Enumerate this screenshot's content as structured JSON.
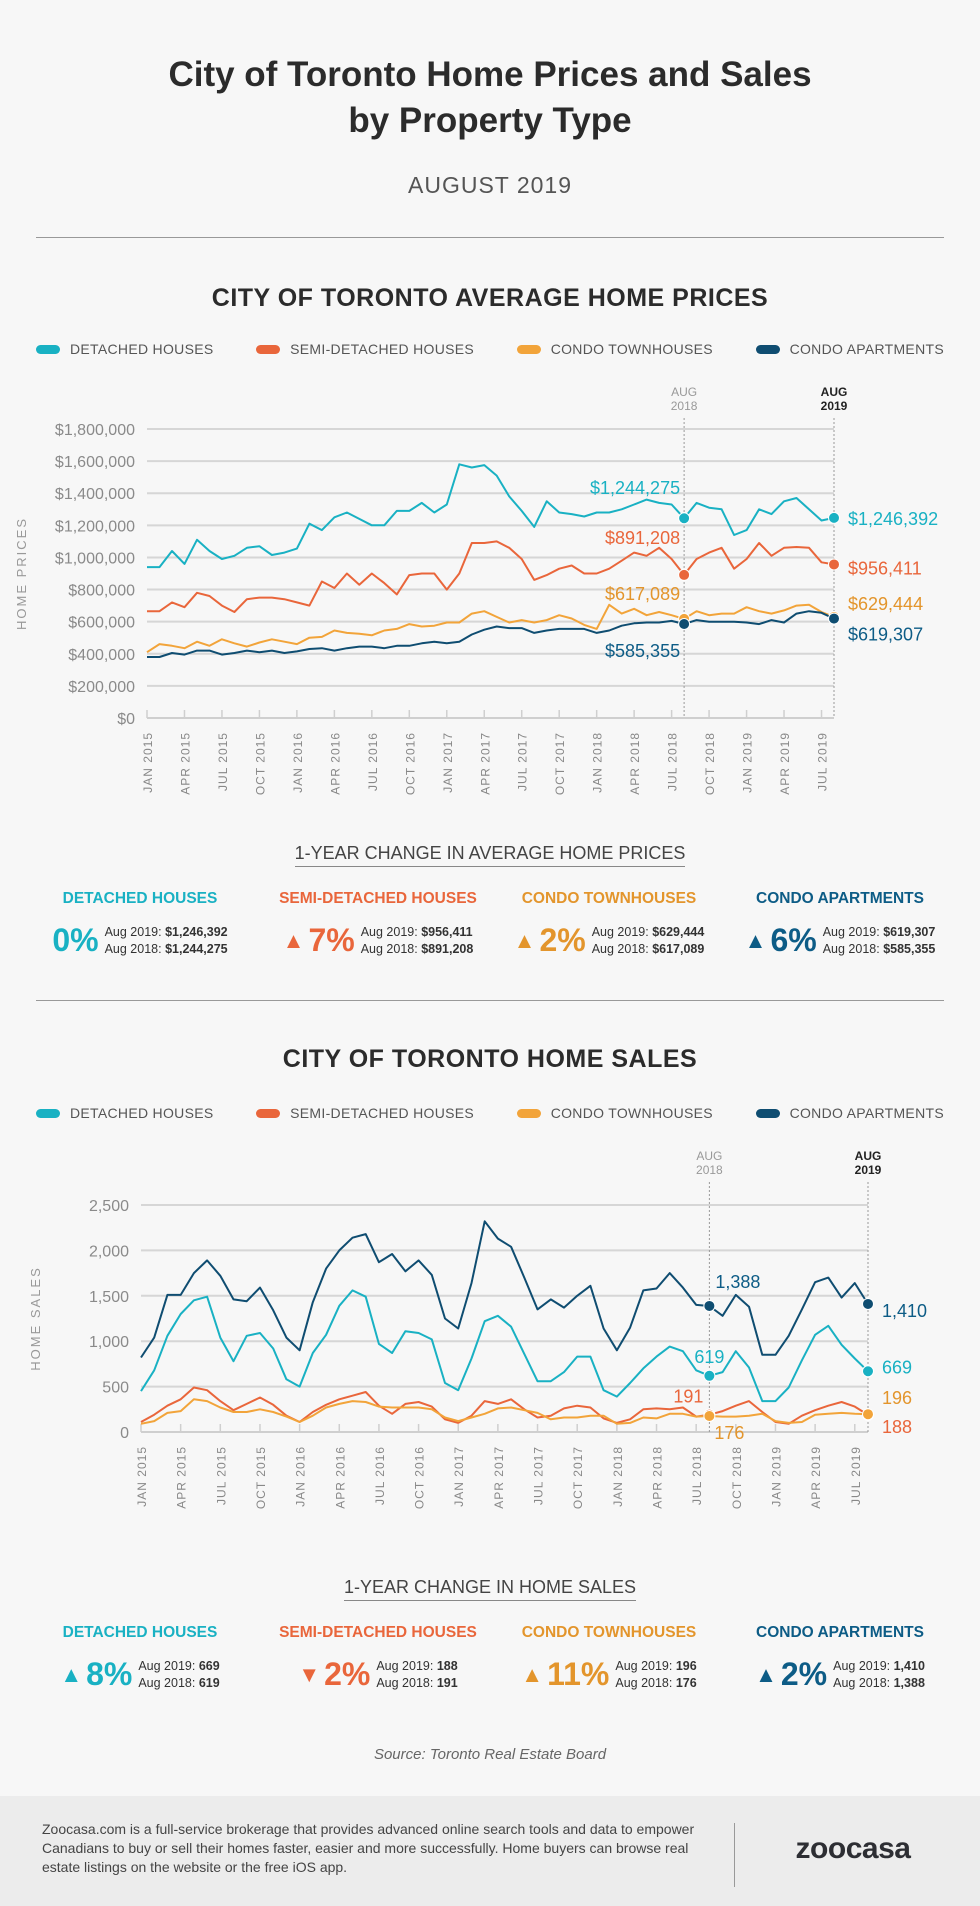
{
  "header": {
    "title_line1": "City of Toronto Home Prices and Sales",
    "title_line2": "by Property Type",
    "subtitle": "AUGUST 2019"
  },
  "colors": {
    "detached": "#19b1c3",
    "semi": "#e9663b",
    "townhouse": "#f2a43a",
    "apartment": "#0f4d71",
    "townhouse_text": "#e3952c",
    "apartment_text": "#0d5c86"
  },
  "legend": [
    "DETACHED HOUSES",
    "SEMI-DETACHED HOUSES",
    "CONDO TOWNHOUSES",
    "CONDO APARTMENTS"
  ],
  "prices": {
    "section_title": "CITY OF TORONTO AVERAGE HOME PRICES",
    "change_title": "1-YEAR CHANGE IN AVERAGE HOME PRICES",
    "changes": [
      {
        "name": "DETACHED HOUSES",
        "direction": "none",
        "pct": "0%",
        "line1_label": "Aug 2019:",
        "line1_value": "$1,246,392",
        "line2_label": "Aug 2018:",
        "line2_value": "$1,244,275"
      },
      {
        "name": "SEMI-DETACHED HOUSES",
        "direction": "up",
        "pct": "7%",
        "line1_label": "Aug 2019:",
        "line1_value": "$956,411",
        "line2_label": "Aug 2018:",
        "line2_value": "$891,208"
      },
      {
        "name": "CONDO TOWNHOUSES",
        "direction": "up",
        "pct": "2%",
        "line1_label": "Aug 2019:",
        "line1_value": "$629,444",
        "line2_label": "Aug 2018:",
        "line2_value": "$617,089"
      },
      {
        "name": "CONDO APARTMENTS",
        "direction": "up",
        "pct": "6%",
        "line1_label": "Aug 2019:",
        "line1_value": "$619,307",
        "line2_label": "Aug 2018:",
        "line2_value": "$585,355"
      }
    ]
  },
  "sales": {
    "section_title": "CITY OF TORONTO HOME SALES",
    "change_title": "1-YEAR CHANGE IN HOME SALES",
    "changes": [
      {
        "name": "DETACHED HOUSES",
        "direction": "up",
        "pct": "8%",
        "line1_label": "Aug 2019:",
        "line1_value": "669",
        "line2_label": "Aug 2018:",
        "line2_value": "619"
      },
      {
        "name": "SEMI-DETACHED HOUSES",
        "direction": "down",
        "pct": "2%",
        "line1_label": "Aug 2019:",
        "line1_value": "188",
        "line2_label": "Aug 2018:",
        "line2_value": "191"
      },
      {
        "name": "CONDO TOWNHOUSES",
        "direction": "up",
        "pct": "11%",
        "line1_label": "Aug 2019:",
        "line1_value": "196",
        "line2_label": "Aug 2018:",
        "line2_value": "176"
      },
      {
        "name": "CONDO APARTMENTS",
        "direction": "up",
        "pct": "2%",
        "line1_label": "Aug 2019:",
        "line1_value": "1,410",
        "line2_label": "Aug 2018:",
        "line2_value": "1,388"
      }
    ]
  },
  "chart_data": [
    {
      "type": "line",
      "title": "CITY OF TORONTO AVERAGE HOME PRICES",
      "ylabel": "HOME PRICES",
      "ylim": [
        0,
        1800000
      ],
      "yticks": [
        0,
        200000,
        400000,
        600000,
        800000,
        1000000,
        1200000,
        1400000,
        1600000,
        1800000
      ],
      "ytick_labels": [
        "$0",
        "$200,000",
        "$400,000",
        "$600,000",
        "$800,000",
        "$1,000,000",
        "$1,200,000",
        "$1,400,000",
        "$1,600,000",
        "$1,800,000"
      ],
      "x_start": "JAN 2015",
      "x_end": "AUG 2019",
      "xtick_labels": [
        "JAN 2015",
        "APR 2015",
        "JUL 2015",
        "OCT 2015",
        "JAN 2016",
        "APR 2016",
        "JUL 2016",
        "OCT 2016",
        "JAN 2017",
        "APR 2017",
        "JUL 2017",
        "OCT 2017",
        "JAN 2018",
        "APR 2018",
        "JUL 2018",
        "OCT 2018",
        "JAN 2019",
        "APR 2019",
        "JUL 2019"
      ],
      "markers": [
        {
          "label_top": "AUG",
          "label_bottom": "2018",
          "index": 43,
          "bold": false
        },
        {
          "label_top": "AUG",
          "label_bottom": "2019",
          "index": 55,
          "bold": true
        }
      ],
      "grid": true,
      "legend": "top",
      "series": [
        {
          "name": "DETACHED HOUSES",
          "key": "detached",
          "values": [
            940000,
            940000,
            1040000,
            960000,
            1110000,
            1040000,
            990000,
            1010000,
            1060000,
            1070000,
            1015000,
            1030000,
            1055000,
            1210000,
            1170000,
            1250000,
            1280000,
            1240000,
            1200000,
            1200000,
            1290000,
            1290000,
            1340000,
            1280000,
            1330000,
            1580000,
            1560000,
            1575000,
            1510000,
            1380000,
            1290000,
            1190000,
            1350000,
            1280000,
            1270000,
            1255000,
            1280000,
            1280000,
            1300000,
            1330000,
            1360000,
            1340000,
            1330000,
            1244275,
            1340000,
            1310000,
            1300000,
            1140000,
            1170000,
            1300000,
            1270000,
            1350000,
            1370000,
            1300000,
            1230000,
            1246392
          ],
          "label_2018": "$1,244,275",
          "label_2019": "$1,246,392"
        },
        {
          "name": "SEMI-DETACHED HOUSES",
          "key": "semi",
          "values": [
            665000,
            665000,
            720000,
            690000,
            780000,
            760000,
            700000,
            660000,
            740000,
            750000,
            750000,
            740000,
            720000,
            700000,
            850000,
            810000,
            900000,
            830000,
            900000,
            840000,
            770000,
            890000,
            900000,
            900000,
            800000,
            900000,
            1090000,
            1090000,
            1100000,
            1060000,
            990000,
            860000,
            890000,
            930000,
            950000,
            900000,
            900000,
            930000,
            980000,
            1030000,
            1010000,
            1060000,
            990000,
            891208,
            990000,
            1030000,
            1060000,
            930000,
            990000,
            1090000,
            1010000,
            1060000,
            1065000,
            1060000,
            970000,
            956411
          ],
          "label_2018": "$891,208",
          "label_2019": "$956,411"
        },
        {
          "name": "CONDO TOWNHOUSES",
          "key": "townhouse",
          "values": [
            410000,
            460000,
            450000,
            435000,
            475000,
            450000,
            490000,
            465000,
            445000,
            470000,
            490000,
            475000,
            460000,
            500000,
            505000,
            545000,
            530000,
            525000,
            515000,
            545000,
            555000,
            585000,
            570000,
            575000,
            595000,
            595000,
            650000,
            665000,
            630000,
            595000,
            610000,
            595000,
            610000,
            640000,
            620000,
            580000,
            555000,
            705000,
            650000,
            680000,
            640000,
            660000,
            640000,
            617089,
            665000,
            640000,
            650000,
            650000,
            690000,
            665000,
            650000,
            670000,
            700000,
            705000,
            660000,
            629444
          ],
          "label_2018": "$617,089",
          "label_2019": "$629,444"
        },
        {
          "name": "CONDO APARTMENTS",
          "key": "apartment",
          "values": [
            380000,
            380000,
            405000,
            395000,
            420000,
            420000,
            395000,
            405000,
            420000,
            410000,
            420000,
            405000,
            415000,
            430000,
            435000,
            420000,
            435000,
            445000,
            445000,
            435000,
            450000,
            450000,
            465000,
            475000,
            465000,
            475000,
            520000,
            550000,
            570000,
            560000,
            560000,
            530000,
            545000,
            555000,
            555000,
            555000,
            530000,
            545000,
            575000,
            590000,
            595000,
            595000,
            605000,
            585355,
            610000,
            600000,
            600000,
            600000,
            595000,
            585000,
            610000,
            595000,
            650000,
            665000,
            655000,
            619307
          ],
          "label_2018": "$585,355",
          "label_2019": "$619,307"
        }
      ]
    },
    {
      "type": "line",
      "title": "CITY OF TORONTO HOME SALES",
      "ylabel": "HOME SALES",
      "ylim": [
        0,
        2500
      ],
      "yticks": [
        0,
        500,
        1000,
        1500,
        2000,
        2500
      ],
      "ytick_labels": [
        "0",
        "500",
        "1,000",
        "1,500",
        "2,000",
        "2,500"
      ],
      "x_start": "JAN 2015",
      "x_end": "AUG 2019",
      "xtick_labels": [
        "JAN 2015",
        "APR 2015",
        "JUL 2015",
        "OCT 2015",
        "JAN 2016",
        "APR 2016",
        "JUL 2016",
        "OCT 2016",
        "JAN 2017",
        "APR 2017",
        "JUL 2017",
        "OCT 2017",
        "JAN 2018",
        "APR 2018",
        "JUL 2018",
        "OCT 2018",
        "JAN 2019",
        "APR 2019",
        "JUL 2019"
      ],
      "markers": [
        {
          "label_top": "AUG",
          "label_bottom": "2018",
          "index": 43,
          "bold": false
        },
        {
          "label_top": "AUG",
          "label_bottom": "2019",
          "index": 55,
          "bold": true
        }
      ],
      "grid": true,
      "legend": "top",
      "series": [
        {
          "name": "DETACHED HOUSES",
          "key": "detached",
          "values": [
            450,
            680,
            1060,
            1300,
            1450,
            1490,
            1040,
            780,
            1060,
            1090,
            920,
            580,
            500,
            870,
            1070,
            1390,
            1560,
            1490,
            970,
            870,
            1110,
            1090,
            1020,
            540,
            460,
            810,
            1220,
            1280,
            1160,
            860,
            560,
            560,
            660,
            830,
            830,
            460,
            390,
            540,
            700,
            830,
            940,
            890,
            680,
            619,
            660,
            890,
            710,
            340,
            340,
            490,
            790,
            1070,
            1170,
            960,
            810,
            669
          ],
          "label_2018": "619",
          "label_2019": "669"
        },
        {
          "name": "SEMI-DETACHED HOUSES",
          "key": "semi",
          "values": [
            110,
            190,
            290,
            360,
            490,
            460,
            340,
            240,
            310,
            380,
            300,
            180,
            110,
            220,
            300,
            360,
            400,
            440,
            290,
            200,
            310,
            330,
            280,
            140,
            100,
            180,
            340,
            310,
            360,
            250,
            160,
            180,
            260,
            290,
            270,
            150,
            100,
            140,
            250,
            260,
            250,
            270,
            170,
            191,
            230,
            290,
            340,
            220,
            110,
            90,
            180,
            240,
            290,
            330,
            280,
            188
          ],
          "label_2018": "191",
          "label_2019": "188"
        },
        {
          "name": "CONDO TOWNHOUSES",
          "key": "townhouse",
          "values": [
            90,
            120,
            210,
            230,
            360,
            340,
            270,
            220,
            220,
            250,
            220,
            170,
            110,
            180,
            270,
            310,
            340,
            330,
            280,
            270,
            270,
            270,
            250,
            160,
            120,
            160,
            200,
            260,
            270,
            240,
            210,
            140,
            160,
            160,
            180,
            180,
            90,
            100,
            160,
            150,
            200,
            200,
            170,
            176,
            170,
            170,
            180,
            200,
            120,
            100,
            110,
            190,
            200,
            210,
            200,
            196
          ],
          "label_2018": "176",
          "label_2019": "196"
        },
        {
          "name": "CONDO APARTMENTS",
          "key": "apartment",
          "values": [
            820,
            1040,
            1510,
            1510,
            1750,
            1890,
            1720,
            1460,
            1440,
            1590,
            1340,
            1040,
            900,
            1430,
            1800,
            2000,
            2140,
            2180,
            1870,
            1960,
            1770,
            1890,
            1730,
            1250,
            1140,
            1640,
            2320,
            2130,
            2040,
            1700,
            1350,
            1460,
            1370,
            1500,
            1610,
            1140,
            900,
            1150,
            1560,
            1580,
            1750,
            1590,
            1400,
            1388,
            1280,
            1510,
            1380,
            850,
            850,
            1060,
            1350,
            1650,
            1700,
            1480,
            1640,
            1410
          ],
          "label_2018": "1,388",
          "label_2019": "1,410"
        }
      ]
    }
  ],
  "source": "Source: Toronto Real Estate Board",
  "footer": {
    "text": "Zoocasa.com is a full-service brokerage that provides advanced online search tools and data to empower Canadians to buy or sell their homes faster, easier and more successfully. Home buyers can browse real estate listings on the website or the free iOS app.",
    "logo": "zoocasa"
  }
}
